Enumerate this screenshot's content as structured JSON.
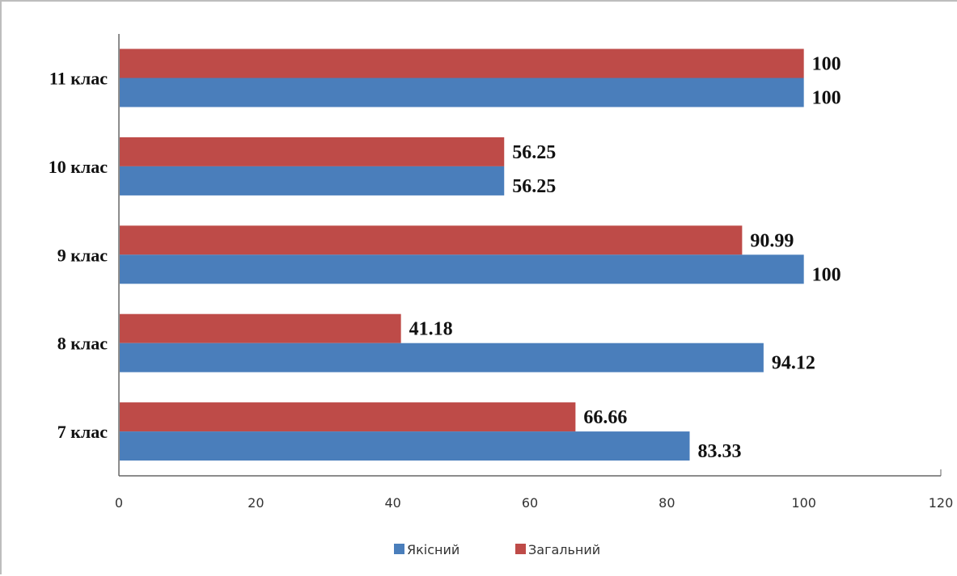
{
  "chart_data": {
    "type": "bar",
    "orientation": "horizontal",
    "categories": [
      "7 клас",
      "8 клас",
      "9 клас",
      "10 клас",
      "11 клас"
    ],
    "series": [
      {
        "name": "Якісний",
        "color": "#4a7ebb",
        "values": [
          83.33,
          94.12,
          100,
          56.25,
          100
        ],
        "labels": [
          "83.33",
          "94.12",
          "100",
          "56.25",
          "100"
        ]
      },
      {
        "name": "Загальний",
        "color": "#be4b48",
        "values": [
          66.66,
          41.18,
          90.99,
          56.25,
          100
        ],
        "labels": [
          "66.66",
          "41.18",
          "90.99",
          "56.25",
          "100"
        ]
      }
    ],
    "xlim": [
      0,
      120
    ],
    "x_ticks": [
      "0",
      "20",
      "40",
      "60",
      "80",
      "100",
      "120"
    ],
    "grid": false,
    "legend_position": "bottom"
  }
}
